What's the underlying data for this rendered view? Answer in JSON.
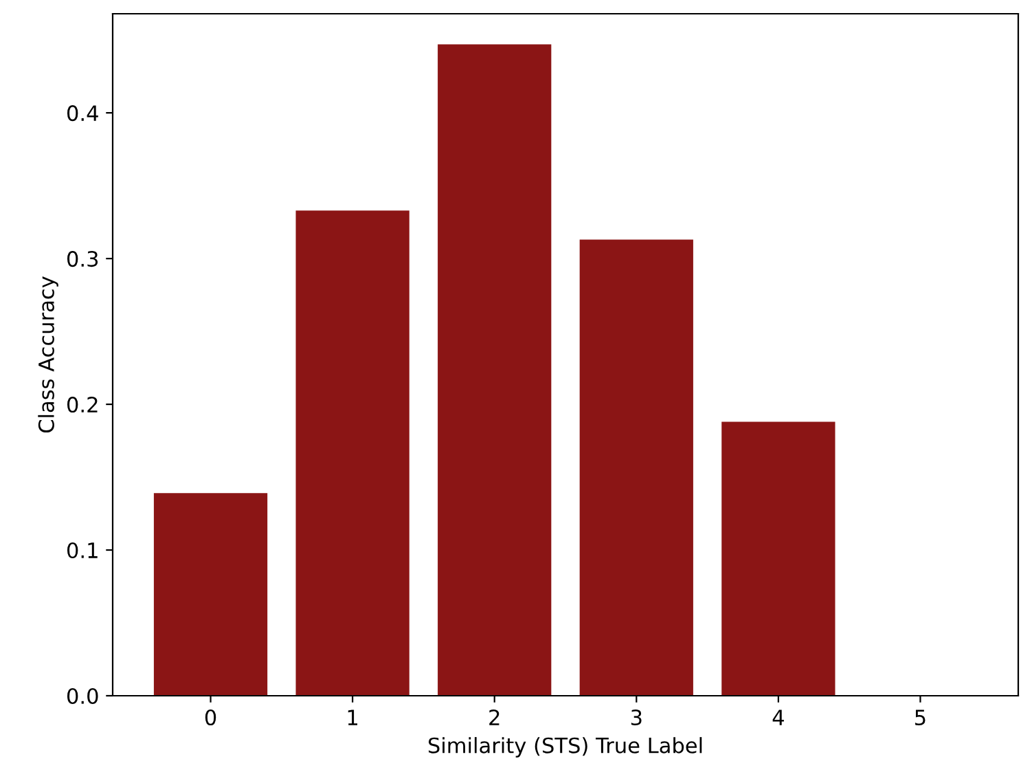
{
  "chart_data": {
    "type": "bar",
    "xlabel": "Similarity (STS) True Label",
    "ylabel": "Class Accuracy",
    "categories": [
      "0",
      "1",
      "2",
      "3",
      "4",
      "5"
    ],
    "values": [
      0.139,
      0.333,
      0.447,
      0.313,
      0.188,
      0
    ],
    "color": "#8b1515",
    "ylim": [
      0,
      0.468
    ],
    "yticks": [
      {
        "value": 0,
        "label": "0.0"
      },
      0.1,
      0.2,
      0.3,
      0.4
    ],
    "grid": false,
    "legend": false
  }
}
